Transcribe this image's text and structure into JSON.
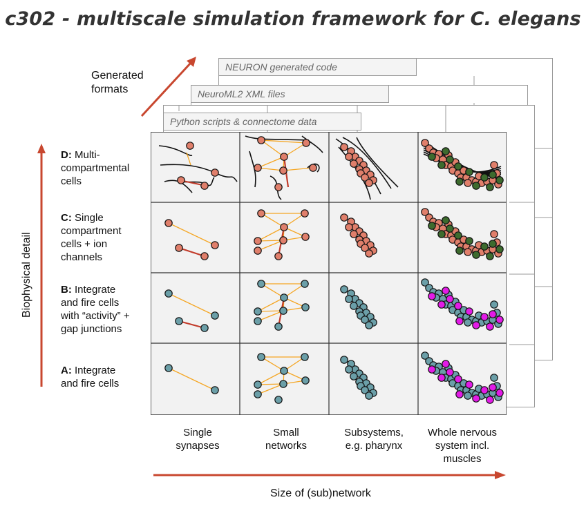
{
  "title": "c302 - multiscale simulation framework for C. elegans",
  "generated_formats_label": "Generated\nformats",
  "layers": [
    {
      "label": "NEURON generated code"
    },
    {
      "label": "NeuroML2 XML files"
    },
    {
      "label": "Python scripts & connectome data"
    }
  ],
  "y_axis_label": "Biophysical detail",
  "x_axis_label": "Size of (sub)network",
  "rows": [
    {
      "key": "D:",
      "text": " Multi-\ncompartmental\ncells"
    },
    {
      "key": "C:",
      "text": " Single\ncompartment\ncells + ion\nchannels"
    },
    {
      "key": "B:",
      "text": " Integrate\nand fire cells\nwith “activity” +\ngap junctions"
    },
    {
      "key": "A:",
      "text": " Integrate\nand fire cells"
    }
  ],
  "columns": [
    {
      "label": "Single\nsynapses"
    },
    {
      "label": "Small\nnetworks"
    },
    {
      "label": "Subsystems,\ne.g. pharynx"
    },
    {
      "label": "Whole nervous\nsystem incl.\nmuscles"
    }
  ],
  "colors": {
    "arrow": "#c8472f",
    "cell_fill": "#f2f2f2",
    "grid_line": "#333333",
    "neuron_salmon": "#e07f6b",
    "neuron_teal": "#6b9fa8",
    "muscle_green": "#3d6b2e",
    "muscle_magenta": "#e21be6",
    "synapse": "#f5a623",
    "gap_junction": "#c23b2a",
    "text": "#111111",
    "title": "#333333"
  }
}
